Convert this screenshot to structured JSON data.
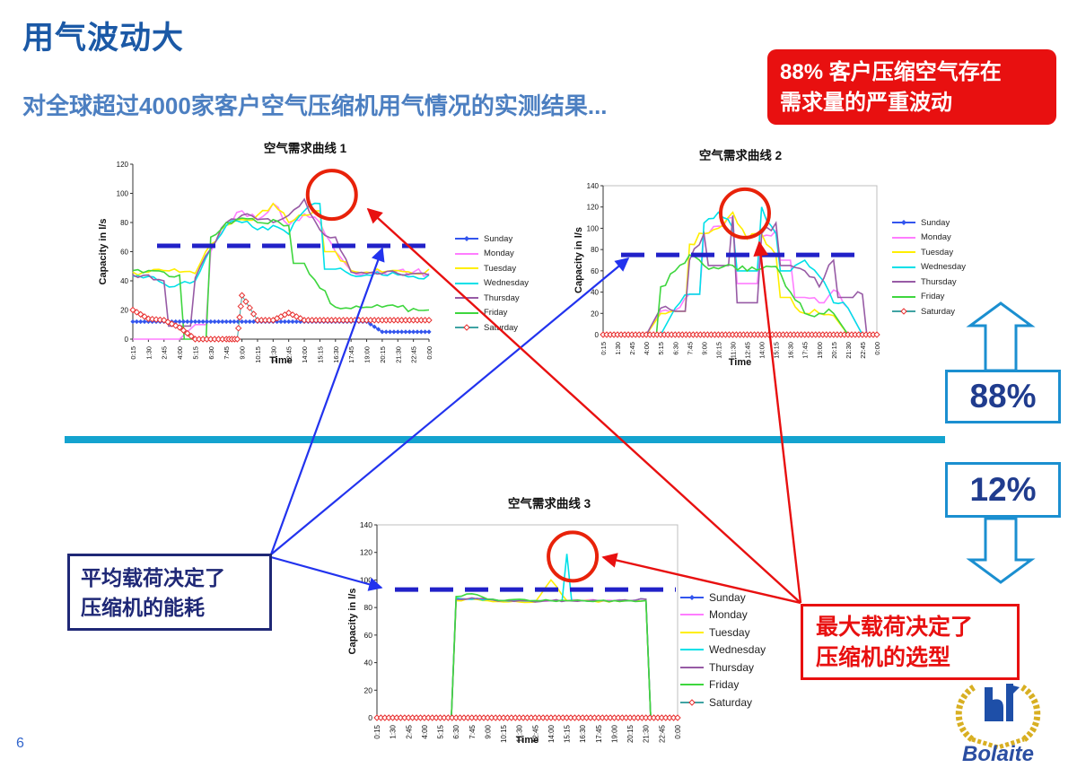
{
  "slide": {
    "title": "用气波动大",
    "subtitle": "对全球超过4000家客户空气压缩机用气情况的实测结果...",
    "page_number": "6"
  },
  "callout": {
    "line1": "88% 客户压缩空气存在",
    "line2": "需求量的严重波动"
  },
  "stats": {
    "upper": "88%",
    "lower": "12%"
  },
  "notes": {
    "avg_line1": "平均载荷决定了",
    "avg_line2": "压缩机的能耗",
    "max_line1": "最大载荷决定了",
    "max_line2": "压缩机的选型"
  },
  "logo": {
    "text": "Bolaite"
  },
  "colors": {
    "accent_blue": "#1b8fd0",
    "divider": "#14a3cf",
    "callout_red": "#e81010",
    "dashed_threshold": "#2121c8"
  },
  "chart_data": [
    {
      "type": "line",
      "title": "空气需求曲线 1",
      "xlabel": "Time",
      "ylabel": "Capacity in l/s",
      "ylim": [
        0,
        120
      ],
      "grid": false,
      "legend_position": "right",
      "x": [
        "0:15",
        "1:30",
        "2:45",
        "4:00",
        "5:15",
        "6:30",
        "7:45",
        "9:00",
        "10:15",
        "11:30",
        "12:45",
        "14:00",
        "15:15",
        "16:30",
        "17:45",
        "19:00",
        "20:15",
        "21:30",
        "22:45",
        "0:00"
      ],
      "threshold": 64,
      "highlight": {
        "x_frac": 0.672,
        "value": 99,
        "r": 27
      },
      "series": [
        {
          "name": "Sunday",
          "color": "#3355ee",
          "marker": "diamond-filled",
          "values": [
            12,
            12,
            12,
            12,
            12,
            12,
            12,
            12,
            12,
            12,
            12,
            12,
            12,
            12,
            12,
            12,
            5,
            5,
            5,
            5
          ]
        },
        {
          "name": "Monday",
          "color": "#ff7dff",
          "values": [
            0,
            0,
            0,
            0,
            10,
            60,
            78,
            88,
            82,
            93,
            78,
            86,
            80,
            60,
            47,
            46,
            46,
            47,
            46,
            45
          ]
        },
        {
          "name": "Tuesday",
          "color": "#ffee00",
          "values": [
            46,
            46,
            47,
            46,
            45,
            65,
            78,
            82,
            85,
            93,
            80,
            85,
            88,
            60,
            47,
            46,
            46,
            47,
            45,
            48
          ]
        },
        {
          "name": "Wednesday",
          "color": "#00e0e8",
          "values": [
            43,
            43,
            38,
            38,
            40,
            62,
            78,
            80,
            75,
            78,
            72,
            88,
            93,
            48,
            44,
            44,
            44,
            44,
            43,
            44
          ]
        },
        {
          "name": "Thursday",
          "color": "#975ba5",
          "values": [
            44,
            44,
            40,
            9,
            42,
            62,
            80,
            85,
            82,
            80,
            85,
            96,
            75,
            70,
            46,
            45,
            45,
            45,
            45,
            44
          ]
        },
        {
          "name": "Friday",
          "color": "#3ed63e",
          "values": [
            47,
            47,
            46,
            44,
            0,
            70,
            80,
            83,
            80,
            82,
            78,
            52,
            35,
            22,
            21,
            22,
            22,
            22,
            21,
            20
          ]
        },
        {
          "name": "Saturday",
          "color": "#3fa3a3",
          "marker": "diamond-hollow-red",
          "values": [
            20,
            14,
            13,
            8,
            0,
            0,
            0,
            30,
            13,
            13,
            18,
            13,
            13,
            13,
            13,
            13,
            13,
            13,
            13,
            13
          ]
        }
      ]
    },
    {
      "type": "line",
      "title": "空气需求曲线 2",
      "xlabel": "Time",
      "ylabel": "Capacity in l/s",
      "ylim": [
        0,
        140
      ],
      "grid": false,
      "legend_position": "right",
      "x": [
        "0:15",
        "1:30",
        "2:45",
        "4:00",
        "5:15",
        "6:30",
        "7:45",
        "9:00",
        "10:15",
        "11:30",
        "12:45",
        "14:00",
        "15:15",
        "16:30",
        "17:45",
        "19:00",
        "20:15",
        "21:30",
        "22:45",
        "0:00"
      ],
      "threshold": 75,
      "highlight": {
        "x_frac": 0.518,
        "value": 114,
        "r": 27
      },
      "series": [
        {
          "name": "Sunday",
          "color": "#3355ee",
          "marker": "diamond-filled",
          "values": [
            0,
            0,
            0,
            0,
            0,
            0,
            0,
            0,
            0,
            0,
            0,
            0,
            0,
            0,
            0,
            0,
            0,
            0,
            0,
            0
          ]
        },
        {
          "name": "Monday",
          "color": "#ff7dff",
          "values": [
            0,
            0,
            0,
            0,
            22,
            23,
            38,
            95,
            102,
            110,
            48,
            92,
            98,
            70,
            35,
            30,
            42,
            25,
            0,
            0
          ]
        },
        {
          "name": "Tuesday",
          "color": "#ffee00",
          "values": [
            0,
            0,
            0,
            0,
            20,
            22,
            85,
            95,
            100,
            115,
            90,
            95,
            75,
            35,
            20,
            20,
            18,
            0,
            0,
            0
          ]
        },
        {
          "name": "Wednesday",
          "color": "#00e0e8",
          "values": [
            0,
            0,
            0,
            0,
            0,
            25,
            38,
            105,
            115,
            100,
            60,
            120,
            95,
            60,
            70,
            55,
            30,
            25,
            0,
            0
          ]
        },
        {
          "name": "Thursday",
          "color": "#975ba5",
          "values": [
            0,
            0,
            0,
            0,
            25,
            22,
            70,
            95,
            65,
            112,
            30,
            95,
            105,
            65,
            60,
            45,
            70,
            35,
            38,
            0
          ]
        },
        {
          "name": "Friday",
          "color": "#3ed63e",
          "values": [
            0,
            0,
            0,
            0,
            45,
            60,
            75,
            65,
            62,
            65,
            60,
            62,
            64,
            40,
            20,
            20,
            20,
            0,
            0,
            0
          ]
        },
        {
          "name": "Saturday",
          "color": "#3fa3a3",
          "marker": "diamond-hollow-red",
          "values": [
            0,
            0,
            0,
            0,
            0,
            0,
            0,
            0,
            0,
            0,
            0,
            0,
            0,
            0,
            0,
            0,
            0,
            0,
            0,
            0
          ]
        }
      ]
    },
    {
      "type": "line",
      "title": "空气需求曲线 3",
      "xlabel": "Time",
      "ylabel": "Capacity in l/s",
      "ylim": [
        0,
        140
      ],
      "grid": false,
      "legend_position": "right",
      "x": [
        "0:15",
        "1:30",
        "2:45",
        "4:00",
        "5:15",
        "6:30",
        "7:45",
        "9:00",
        "10:15",
        "11:30",
        "12:45",
        "14:00",
        "15:15",
        "16:30",
        "17:45",
        "19:00",
        "20:15",
        "21:30",
        "22:45",
        "0:00"
      ],
      "threshold": 93,
      "highlight": {
        "x_frac": 0.651,
        "value": 117,
        "r": 27
      },
      "series": [
        {
          "name": "Sunday",
          "color": "#3355ee",
          "marker": "diamond-filled",
          "values": [
            0,
            0,
            0,
            0,
            0,
            0,
            0,
            0,
            0,
            0,
            0,
            0,
            0,
            0,
            0,
            0,
            0,
            0,
            0,
            0
          ]
        },
        {
          "name": "Monday",
          "color": "#ff7dff",
          "values": [
            0,
            0,
            0,
            0,
            0,
            86,
            86,
            86,
            85,
            85,
            85,
            85,
            85,
            85,
            85,
            85,
            85,
            86,
            0,
            0
          ]
        },
        {
          "name": "Tuesday",
          "color": "#ffee00",
          "values": [
            0,
            0,
            0,
            0,
            0,
            85,
            86,
            85,
            84,
            84,
            84,
            100,
            85,
            85,
            84,
            85,
            85,
            85,
            0,
            0
          ]
        },
        {
          "name": "Wednesday",
          "color": "#00e0e8",
          "values": [
            0,
            0,
            0,
            0,
            0,
            87,
            86,
            86,
            85,
            85,
            85,
            85,
            119,
            85,
            85,
            85,
            85,
            86,
            0,
            0
          ]
        },
        {
          "name": "Thursday",
          "color": "#975ba5",
          "values": [
            0,
            0,
            0,
            0,
            0,
            86,
            87,
            86,
            85,
            85,
            84,
            85,
            85,
            85,
            85,
            85,
            85,
            86,
            0,
            0
          ]
        },
        {
          "name": "Friday",
          "color": "#3ed63e",
          "values": [
            0,
            0,
            0,
            0,
            0,
            88,
            90,
            86,
            85,
            86,
            85,
            85,
            85,
            85,
            85,
            85,
            85,
            85,
            0,
            0
          ]
        },
        {
          "name": "Saturday",
          "color": "#3fa3a3",
          "marker": "diamond-hollow-red",
          "values": [
            0,
            0,
            0,
            0,
            0,
            0,
            0,
            0,
            0,
            0,
            0,
            0,
            0,
            0,
            0,
            0,
            0,
            0,
            0,
            0
          ]
        }
      ]
    }
  ]
}
